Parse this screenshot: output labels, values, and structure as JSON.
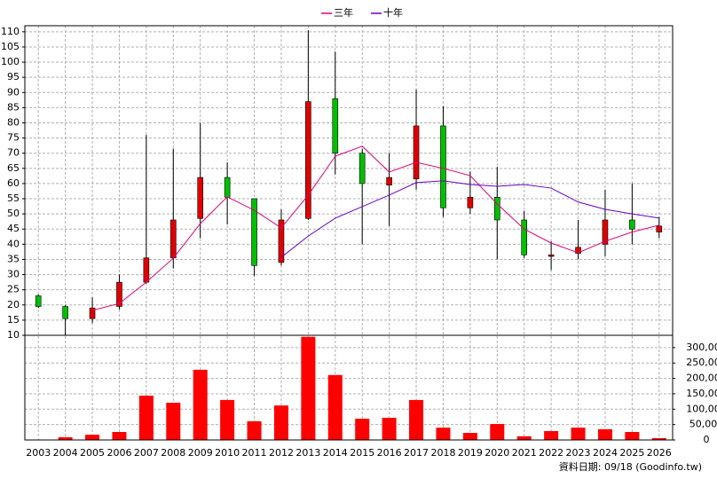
{
  "chart_data": [
    {
      "type": "candlestick",
      "categories": [
        "2003",
        "2004",
        "2005",
        "2006",
        "2007",
        "2008",
        "2009",
        "2010",
        "2011",
        "2012",
        "2013",
        "2014",
        "2015",
        "2016",
        "2017",
        "2018",
        "2019",
        "2020",
        "2021",
        "2022",
        "2023",
        "2024",
        "2025",
        "2026"
      ],
      "open": [
        23,
        19.5,
        15.5,
        19.5,
        27.5,
        35.5,
        48.5,
        62,
        55,
        34,
        48.5,
        88,
        70,
        59.5,
        61.5,
        79,
        52,
        55.5,
        48,
        36,
        37,
        40,
        48,
        44
      ],
      "high": [
        23.5,
        20,
        22.5,
        30,
        76,
        71.5,
        80,
        67,
        55,
        51.5,
        110.5,
        103.5,
        71.5,
        70,
        91,
        85.5,
        64,
        65.5,
        51,
        41,
        48,
        58,
        60,
        49
      ],
      "low": [
        19,
        10,
        14,
        18.5,
        27,
        32,
        42,
        46.5,
        29.5,
        33,
        48,
        63,
        40,
        46,
        58,
        49,
        50,
        35,
        35.5,
        31.5,
        35,
        36,
        40,
        42
      ],
      "close": [
        19.5,
        15.5,
        19,
        27.5,
        35.5,
        48,
        62,
        55.5,
        33,
        48,
        87,
        70,
        60,
        62,
        79,
        52,
        55.5,
        48,
        36.5,
        36.5,
        39,
        48,
        45,
        46
      ],
      "up_color": "#e00000",
      "down_color": "#00c000",
      "series": [
        {
          "name": "三年",
          "color": "#e0007a",
          "values": [
            null,
            null,
            18.2,
            20.5,
            27.5,
            35.4,
            46.8,
            55.6,
            51.2,
            45.4,
            56.2,
            69,
            72.3,
            63.8,
            67,
            65,
            62.6,
            53.3,
            45,
            40.4,
            37.2,
            41,
            44,
            46.3
          ]
        },
        {
          "name": "十年",
          "color": "#6a00c8",
          "values": [
            null,
            null,
            null,
            null,
            null,
            null,
            null,
            null,
            null,
            35.7,
            42.7,
            48.6,
            52.4,
            56.2,
            60.3,
            60.9,
            59.7,
            59.1,
            59.7,
            58.5,
            53.9,
            51.5,
            50,
            48.6
          ]
        }
      ],
      "ylim": [
        10,
        112
      ],
      "yticks": [
        10,
        15,
        20,
        25,
        30,
        35,
        40,
        45,
        50,
        55,
        60,
        65,
        70,
        75,
        80,
        85,
        90,
        95,
        100,
        105,
        110
      ],
      "grid": true
    },
    {
      "type": "bar",
      "color": "#ff0000",
      "values": [
        0,
        9000,
        17000,
        26000,
        144000,
        121000,
        228000,
        130000,
        61000,
        112000,
        335000,
        211000,
        69000,
        72000,
        130000,
        40000,
        23000,
        52000,
        12000,
        29000,
        40000,
        35000,
        26000,
        6000
      ],
      "ylim": [
        0,
        340000
      ],
      "yticks": [
        0,
        {
          "value": 50000,
          "label": "50,000"
        },
        {
          "value": 100000,
          "label": "100,000"
        },
        {
          "value": 150000,
          "label": "150,000"
        },
        {
          "value": 200000,
          "label": "200,000"
        },
        {
          "value": 250000,
          "label": "250,000"
        },
        {
          "value": 300000,
          "label": "300,000"
        }
      ],
      "grid": true
    }
  ],
  "footer": "資料日期: 09/18  (Goodinfo.tw)"
}
